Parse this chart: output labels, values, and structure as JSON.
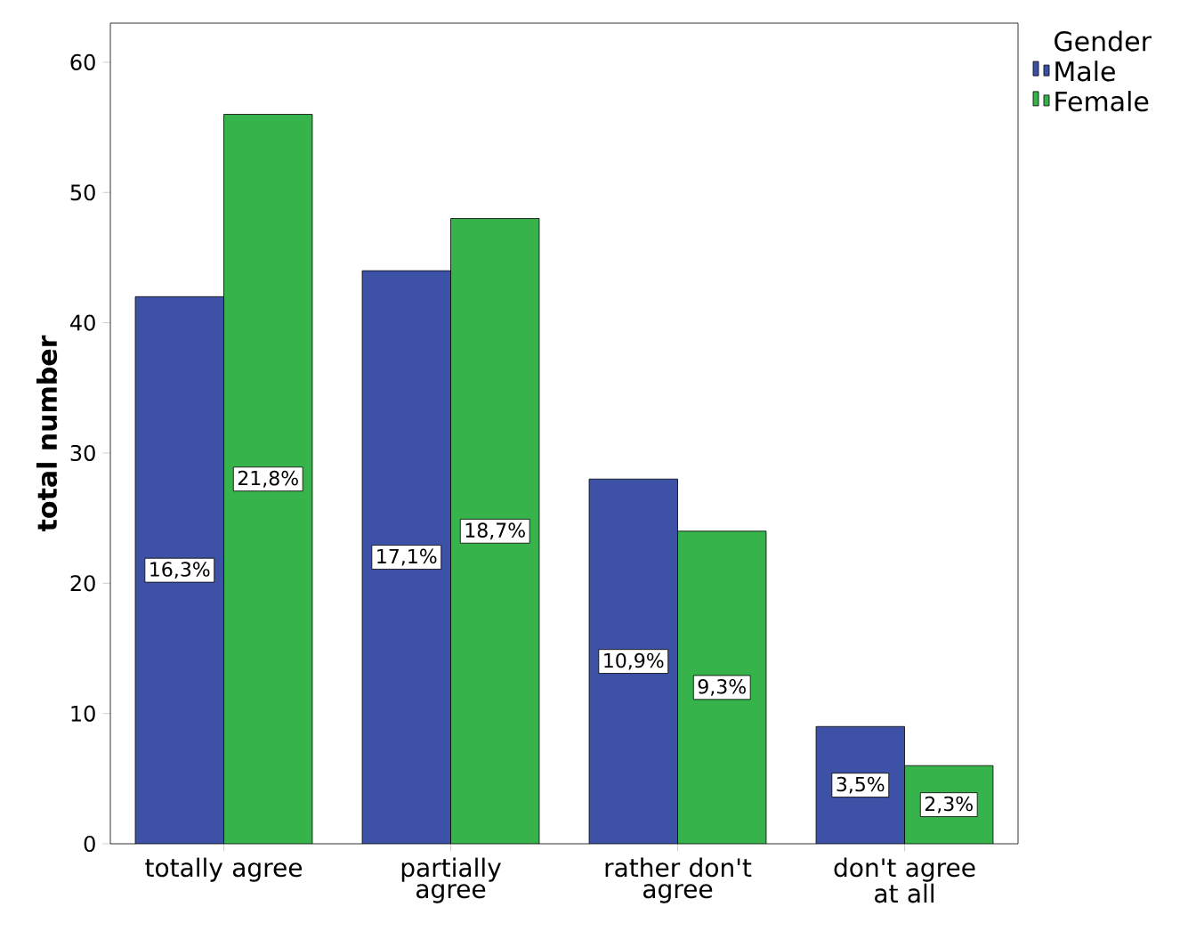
{
  "chart_data": {
    "type": "bar",
    "ylabel": "total number",
    "legend_title": "Gender",
    "categories": [
      "totally agree",
      "partially agree",
      "rather don't agree",
      "don't agree at all"
    ],
    "series": [
      {
        "name": "Male",
        "color": "#3d52a6",
        "values": [
          42,
          44,
          28,
          9
        ]
      },
      {
        "name": "Female",
        "color": "#36b34a",
        "values": [
          56,
          48,
          24,
          6
        ]
      }
    ],
    "annotations": [
      "16,3%",
      "17,1%",
      "10,9%",
      "3,5%",
      "21,8%",
      "18,7%",
      "9,3%",
      "2,3%"
    ],
    "ylim": [
      0,
      63
    ],
    "yticks": [
      0,
      10,
      20,
      30,
      40,
      50,
      60
    ],
    "grid": false,
    "legend": "top right"
  }
}
